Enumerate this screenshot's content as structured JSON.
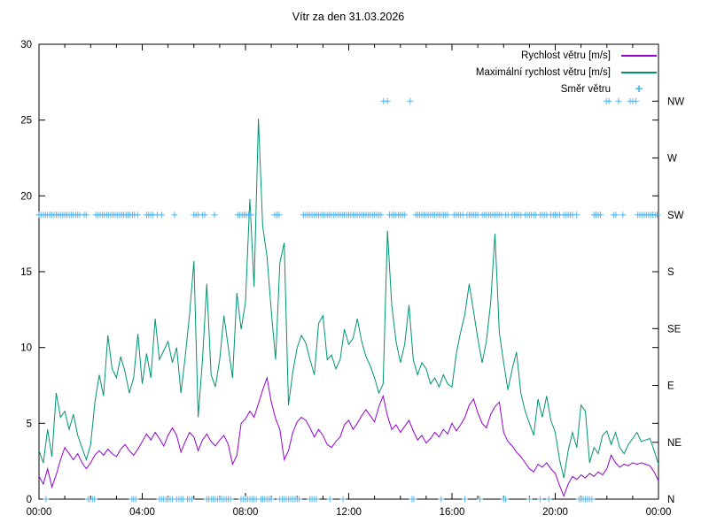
{
  "title": "Vítr za den 31.03.2026",
  "legend": [
    {
      "label": "Rychlost větru [m/s]",
      "color": "#9400d3",
      "marker": "line"
    },
    {
      "label": "Maximální rychlost větru [m/s]",
      "color": "#009473",
      "marker": "line"
    },
    {
      "label": "Směr větru",
      "color": "#56b4e9",
      "marker": "+"
    }
  ],
  "chart_data": {
    "type": "line",
    "title": "Vítr za den 31.03.2026",
    "xlabel": "",
    "ylabel": "",
    "grid": false,
    "legend_position": "top-right-inside",
    "background": "#ffffff",
    "axis_color": "#000000",
    "x_range_hours": [
      0,
      24
    ],
    "x_major_tick_hours": 4,
    "x_minor_tick_hours": 1,
    "x_tick_labels": [
      "00:00",
      "04:00",
      "08:00",
      "12:00",
      "16:00",
      "20:00",
      "00:00"
    ],
    "ylim": [
      0,
      30
    ],
    "y_ticks": [
      0,
      5,
      10,
      15,
      20,
      25,
      30
    ],
    "y2_label_order": [
      "N",
      "NE",
      "E",
      "SE",
      "S",
      "SW",
      "W",
      "NW"
    ],
    "direction_scale": {
      "N": 0,
      "NE": 3.75,
      "E": 7.5,
      "SE": 11.25,
      "S": 15,
      "SW": 18.75,
      "W": 22.5,
      "NW": 26.25
    },
    "x_start_hours": 0,
    "x_step_hours": 0.1666667,
    "series": [
      {
        "name": "Rychlost větru [m/s]",
        "color": "#9400d3",
        "style": "line",
        "values": [
          1.5,
          1.0,
          2.0,
          0.8,
          1.6,
          2.6,
          3.4,
          3.0,
          2.6,
          3.0,
          2.4,
          2.0,
          2.4,
          2.9,
          3.2,
          2.9,
          3.3,
          3.0,
          2.8,
          3.3,
          3.6,
          3.2,
          2.9,
          3.3,
          3.8,
          4.3,
          3.9,
          4.4,
          4.0,
          3.5,
          4.2,
          4.7,
          4.2,
          3.1,
          3.8,
          4.4,
          4.1,
          3.2,
          3.9,
          4.3,
          3.8,
          3.5,
          3.9,
          4.2,
          3.6,
          2.3,
          2.9,
          5.0,
          5.3,
          5.8,
          5.4,
          6.3,
          7.2,
          8.0,
          6.4,
          5.3,
          4.6,
          2.6,
          3.2,
          4.4,
          5.1,
          5.4,
          5.2,
          4.7,
          4.1,
          4.6,
          4.2,
          3.6,
          3.4,
          3.8,
          4.1,
          4.9,
          5.2,
          4.6,
          5.0,
          5.5,
          5.9,
          5.5,
          5.1,
          6.1,
          6.8,
          5.5,
          4.6,
          4.9,
          4.4,
          4.8,
          5.2,
          4.5,
          3.9,
          4.2,
          3.7,
          4.0,
          4.4,
          4.1,
          4.6,
          4.3,
          5.0,
          4.5,
          4.9,
          5.4,
          6.2,
          6.6,
          5.7,
          5.0,
          4.7,
          5.6,
          6.1,
          6.4,
          4.4,
          3.8,
          3.5,
          3.1,
          2.8,
          2.4,
          2.0,
          1.8,
          2.3,
          2.1,
          2.4,
          2.0,
          1.7,
          0.9,
          0.2,
          1.0,
          1.5,
          1.3,
          1.6,
          1.4,
          1.7,
          1.5,
          1.8,
          1.6,
          2.0,
          2.9,
          2.4,
          2.1,
          2.3,
          2.2,
          2.4,
          2.3,
          2.4,
          2.3,
          2.2,
          1.8,
          1.2
        ]
      },
      {
        "name": "Maximální rychlost větru [m/s]",
        "color": "#009473",
        "style": "line",
        "values": [
          3.2,
          2.4,
          4.6,
          2.8,
          7.0,
          5.4,
          5.8,
          4.6,
          5.6,
          4.2,
          3.4,
          2.6,
          3.6,
          6.4,
          8.2,
          6.8,
          10.8,
          8.6,
          8.0,
          9.4,
          8.4,
          7.0,
          8.0,
          10.9,
          7.6,
          9.6,
          8.0,
          11.9,
          9.2,
          9.8,
          10.4,
          9.0,
          10.0,
          7.0,
          9.4,
          12.2,
          15.7,
          5.4,
          9.2,
          14.2,
          8.2,
          7.4,
          9.2,
          12.1,
          10.0,
          8.0,
          13.6,
          11.2,
          13.0,
          19.8,
          14.0,
          25.1,
          18.0,
          16.0,
          12.4,
          9.2,
          15.6,
          16.9,
          6.2,
          8.4,
          10.0,
          10.8,
          10.3,
          9.2,
          8.2,
          11.6,
          12.1,
          9.2,
          9.5,
          8.6,
          9.2,
          11.2,
          10.2,
          10.6,
          11.9,
          10.4,
          9.4,
          8.8,
          8.0,
          7.0,
          7.6,
          17.7,
          12.8,
          10.4,
          9.0,
          10.2,
          12.8,
          9.2,
          8.2,
          9.0,
          8.6,
          7.6,
          8.0,
          7.4,
          8.2,
          7.6,
          7.4,
          9.6,
          11.0,
          12.2,
          14.2,
          12.4,
          10.6,
          9.0,
          10.4,
          13.0,
          17.5,
          11.0,
          9.0,
          7.2,
          8.6,
          9.7,
          7.0,
          5.8,
          5.0,
          4.2,
          6.6,
          5.4,
          6.8,
          5.2,
          4.4,
          2.6,
          1.4,
          3.2,
          4.4,
          3.4,
          6.2,
          5.8,
          2.4,
          3.4,
          3.0,
          4.2,
          4.5,
          3.6,
          4.4,
          3.4,
          3.0,
          3.6,
          4.0,
          4.4,
          3.8,
          3.9,
          4.0,
          3.2,
          2.3
        ]
      },
      {
        "name": "Směr větru",
        "color": "#56b4e9",
        "style": "scatter-plus",
        "points_by_direction": {
          "SW": [
            0.0,
            0.08,
            0.17,
            0.25,
            0.33,
            0.42,
            0.5,
            0.58,
            0.67,
            0.75,
            0.83,
            0.92,
            1.0,
            1.08,
            1.17,
            1.25,
            1.33,
            1.42,
            1.5,
            1.58,
            1.75,
            1.83,
            2.2,
            2.28,
            2.37,
            2.45,
            2.53,
            2.62,
            2.7,
            2.78,
            2.87,
            2.95,
            3.03,
            3.12,
            3.2,
            3.28,
            3.37,
            3.45,
            3.53,
            3.62,
            3.7,
            3.82,
            4.17,
            4.25,
            4.33,
            4.42,
            4.58,
            4.75,
            5.25,
            6.0,
            6.08,
            6.17,
            6.33,
            6.42,
            6.8,
            7.7,
            7.78,
            7.87,
            7.95,
            8.03,
            8.12,
            8.2,
            9.13,
            9.22,
            9.3,
            10.25,
            10.33,
            10.42,
            10.5,
            10.58,
            10.67,
            10.75,
            10.83,
            10.92,
            11.0,
            11.08,
            11.17,
            11.25,
            11.33,
            11.42,
            11.5,
            11.58,
            11.67,
            11.75,
            11.83,
            11.92,
            12.0,
            12.08,
            12.17,
            12.25,
            12.33,
            12.42,
            12.5,
            12.58,
            12.67,
            12.75,
            12.83,
            12.92,
            13.0,
            13.08,
            13.17,
            13.25,
            13.58,
            13.67,
            13.75,
            13.83,
            13.92,
            14.0,
            14.08,
            14.17,
            14.6,
            14.67,
            14.75,
            14.83,
            14.92,
            15.0,
            15.08,
            15.17,
            15.25,
            15.33,
            15.42,
            15.5,
            15.58,
            15.67,
            15.75,
            15.83,
            16.08,
            16.17,
            16.25,
            16.33,
            16.42,
            16.58,
            16.67,
            16.75,
            16.83,
            16.92,
            17.0,
            17.17,
            17.25,
            17.33,
            17.42,
            17.5,
            17.58,
            17.67,
            17.75,
            17.83,
            17.92,
            18.08,
            18.17,
            18.33,
            18.42,
            18.5,
            18.58,
            18.67,
            18.83,
            18.92,
            19.0,
            19.08,
            19.17,
            19.25,
            19.42,
            19.5,
            19.58,
            19.67,
            19.83,
            19.92,
            20.0,
            20.08,
            20.17,
            20.33,
            20.42,
            20.5,
            20.58,
            20.67,
            20.83,
            21.5,
            21.58,
            21.67,
            21.75,
            22.27,
            22.35,
            22.62,
            23.2,
            23.28,
            23.37,
            23.45,
            23.53,
            23.62,
            23.7,
            23.78,
            23.87,
            23.95
          ],
          "N": [
            0.27,
            1.9,
            1.98,
            2.07,
            2.15,
            3.6,
            3.67,
            3.75,
            4.67,
            4.75,
            4.83,
            4.92,
            5.0,
            5.08,
            5.17,
            5.33,
            5.42,
            5.5,
            5.58,
            5.75,
            5.83,
            5.92,
            6.5,
            6.58,
            6.67,
            6.75,
            6.83,
            6.92,
            7.0,
            7.08,
            7.17,
            7.25,
            7.33,
            7.42,
            7.83,
            7.92,
            8.0,
            8.08,
            8.17,
            8.25,
            8.33,
            8.42,
            8.6,
            8.67,
            8.75,
            8.83,
            8.92,
            9.0,
            9.33,
            9.42,
            9.5,
            9.58,
            9.67,
            9.75,
            9.83,
            9.92,
            10.0,
            10.08,
            10.5,
            10.58,
            10.67,
            10.75,
            11.27,
            11.78,
            14.45,
            14.52,
            15.58,
            16.5,
            17.08,
            18.0,
            18.08,
            19.0,
            19.42,
            19.75,
            20.92,
            21.0,
            21.08,
            21.17,
            21.25,
            21.33,
            21.42
          ],
          "NW": [
            13.35,
            13.5,
            14.38,
            21.98,
            22.08,
            22.45,
            22.9,
            23.0,
            23.12
          ]
        }
      }
    ]
  }
}
